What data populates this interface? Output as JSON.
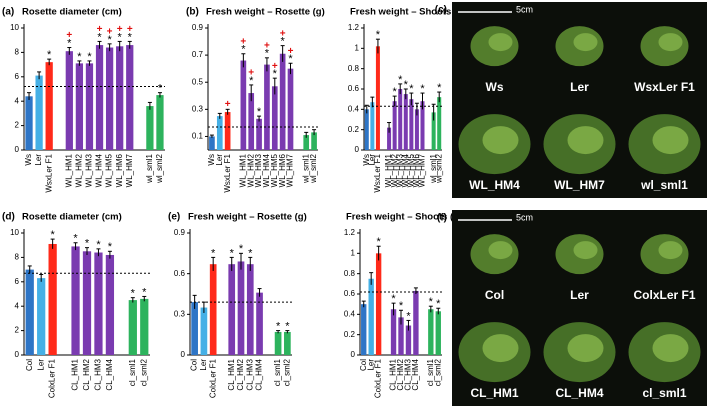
{
  "chart_data": [
    {
      "type": "bar",
      "panel": "(a)",
      "title": "Rosette diameter (cm)",
      "categories": [
        "Ws",
        "Ler",
        "WsxLer F1",
        null,
        "WL_HM1",
        "WL_HM2",
        "WL_HM3",
        "WL_HM4",
        "WL_HM5",
        "WL_HM6",
        "WL_HM7",
        null,
        "wl_sml1",
        "wl_sml2"
      ],
      "values": [
        4.4,
        6.1,
        7.2,
        null,
        8.1,
        7.1,
        7.1,
        8.6,
        8.4,
        8.5,
        8.6,
        null,
        3.6,
        4.5
      ],
      "errors": [
        0.3,
        0.3,
        0.25,
        null,
        0.3,
        0.2,
        0.2,
        0.3,
        0.3,
        0.4,
        0.3,
        null,
        0.3,
        0.2
      ],
      "colors": [
        "#2e75c6",
        "#45b0e6",
        "#ff2a1a",
        null,
        "#7a3bb0",
        "#7a3bb0",
        "#7a3bb0",
        "#7a3bb0",
        "#7a3bb0",
        "#7a3bb0",
        "#7a3bb0",
        null,
        "#2db35d",
        "#2db35d"
      ],
      "sig": [
        null,
        null,
        "*",
        null,
        "*",
        "*",
        "*",
        "*",
        "*",
        "*",
        "*",
        null,
        null,
        "*"
      ],
      "plus": [
        null,
        null,
        null,
        null,
        "+",
        null,
        null,
        "+",
        "+",
        "+",
        "+",
        null,
        null,
        null
      ],
      "reference_line": 5.2,
      "ylim": [
        0,
        10
      ],
      "yticks": [
        0,
        2,
        4,
        6,
        8,
        10
      ]
    },
    {
      "type": "bar",
      "panel": "(b)",
      "title": "Fresh weight – Rosette (g)",
      "categories": [
        "Ws",
        "Ler",
        "WsxLer F1",
        null,
        "WL_HM1",
        "WL_HM2",
        "WL_HM3",
        "WL_HM4",
        "WL_HM5",
        "WL_HM6",
        "WL_HM7",
        null,
        "wl_sml1",
        "wl_sml2"
      ],
      "values": [
        0.1,
        0.25,
        0.28,
        null,
        0.66,
        0.42,
        0.23,
        0.63,
        0.47,
        0.71,
        0.6,
        null,
        0.11,
        0.13
      ],
      "errors": [
        0.01,
        0.02,
        0.02,
        null,
        0.05,
        0.06,
        0.02,
        0.05,
        0.06,
        0.06,
        0.04,
        null,
        0.02,
        0.02
      ],
      "colors": [
        "#2e75c6",
        "#45b0e6",
        "#ff2a1a",
        null,
        "#7a3bb0",
        "#7a3bb0",
        "#7a3bb0",
        "#7a3bb0",
        "#7a3bb0",
        "#7a3bb0",
        "#7a3bb0",
        null,
        "#2db35d",
        "#2db35d"
      ],
      "sig": [
        null,
        null,
        null,
        null,
        "*",
        "*",
        "*",
        "*",
        "*",
        "*",
        "*",
        null,
        null,
        null
      ],
      "plus": [
        null,
        null,
        "+",
        null,
        "+",
        "+",
        null,
        "+",
        "+",
        "+",
        "+",
        null,
        null,
        null
      ],
      "reference_line": 0.17,
      "ylim": [
        0,
        0.9
      ],
      "yticks": [
        0.1,
        0.3,
        0.5,
        0.7,
        0.9
      ]
    },
    {
      "type": "bar",
      "title": "Fresh weight – Shoots (g)",
      "categories": [
        "Ws",
        "Ler",
        "WsxLer F1",
        null,
        "WL_HM1",
        "WL_HM2",
        "WL_HM3",
        "WL_HM4",
        "WL_HM5",
        "WL_HM6",
        "WL_HM7",
        null,
        "wl_sml1",
        "wl_sml2"
      ],
      "values": [
        0.4,
        0.47,
        1.02,
        null,
        0.22,
        0.48,
        0.6,
        0.55,
        0.5,
        0.4,
        0.48,
        null,
        0.37,
        0.52
      ],
      "errors": [
        0.04,
        0.05,
        0.07,
        null,
        0.05,
        0.05,
        0.05,
        0.05,
        0.06,
        0.06,
        0.08,
        null,
        0.08,
        0.05
      ],
      "colors": [
        "#2e75c6",
        "#45b0e6",
        "#ff2a1a",
        null,
        "#7a3bb0",
        "#7a3bb0",
        "#7a3bb0",
        "#7a3bb0",
        "#7a3bb0",
        "#7a3bb0",
        "#7a3bb0",
        null,
        "#2db35d",
        "#2db35d"
      ],
      "sig": [
        null,
        null,
        "*",
        null,
        null,
        "*",
        "*",
        "*",
        "*",
        null,
        "*",
        null,
        null,
        "*"
      ],
      "reference_line": 0.43,
      "ylim": [
        0,
        1.2
      ],
      "yticks": [
        0,
        0.2,
        0.4,
        0.6,
        0.8,
        1,
        1.2
      ]
    },
    {
      "type": "bar",
      "panel": "(d)",
      "title": "Rosette diameter (cm)",
      "categories": [
        "Col",
        "Ler",
        "ColxLer F1",
        null,
        "CL_HM1",
        "CL_HM2",
        "CL_HM3",
        "CL_HM4",
        null,
        "cl_sml1",
        "cl_sml2"
      ],
      "values": [
        7.0,
        6.3,
        9.1,
        null,
        8.9,
        8.5,
        8.4,
        8.2,
        null,
        4.5,
        4.6
      ],
      "errors": [
        0.3,
        0.3,
        0.4,
        null,
        0.3,
        0.3,
        0.3,
        0.3,
        null,
        0.2,
        0.2
      ],
      "colors": [
        "#2e75c6",
        "#45b0e6",
        "#ff2a1a",
        null,
        "#7a3bb0",
        "#7a3bb0",
        "#7a3bb0",
        "#7a3bb0",
        null,
        "#2db35d",
        "#2db35d"
      ],
      "sig": [
        null,
        null,
        "*",
        null,
        "*",
        "*",
        "*",
        "*",
        null,
        "*",
        "*"
      ],
      "reference_line": 6.7,
      "ylim": [
        0,
        10
      ],
      "yticks": [
        0,
        2,
        4,
        6,
        8,
        10
      ]
    },
    {
      "type": "bar",
      "panel": "(e)",
      "title": "Fresh weight – Rosette (g)",
      "categories": [
        "Col",
        "Ler",
        "ColxLer F1",
        null,
        "CL_HM1",
        "CL_HM2",
        "CL_HM3",
        "CL_HM4",
        null,
        "cl_sml1",
        "cl_sml2"
      ],
      "values": [
        0.39,
        0.35,
        0.67,
        null,
        0.67,
        0.69,
        0.67,
        0.46,
        null,
        0.17,
        0.17
      ],
      "errors": [
        0.05,
        0.04,
        0.05,
        null,
        0.05,
        0.06,
        0.05,
        0.03,
        null,
        0.01,
        0.01
      ],
      "colors": [
        "#2e75c6",
        "#45b0e6",
        "#ff2a1a",
        null,
        "#7a3bb0",
        "#7a3bb0",
        "#7a3bb0",
        "#7a3bb0",
        null,
        "#2db35d",
        "#2db35d"
      ],
      "sig": [
        null,
        null,
        "*",
        null,
        "*",
        "*",
        "*",
        null,
        null,
        "*",
        "*"
      ],
      "reference_line": 0.39,
      "ylim": [
        0,
        0.9
      ],
      "yticks": [
        0,
        0.3,
        0.6,
        0.9
      ]
    },
    {
      "type": "bar",
      "title": "Fresh weight – Shoots (g)",
      "categories": [
        "Col",
        "Ler",
        "ColxLer F1",
        null,
        "CL_HM1",
        "CL_HM2",
        "CL_HM3",
        "CL_HM4",
        null,
        "cl_sml1",
        "cl_sml2"
      ],
      "values": [
        0.5,
        0.75,
        1.0,
        null,
        0.45,
        0.37,
        0.29,
        0.63,
        null,
        0.45,
        0.43
      ],
      "errors": [
        0.03,
        0.06,
        0.07,
        null,
        0.06,
        0.07,
        0.05,
        0.03,
        null,
        0.03,
        0.03
      ],
      "colors": [
        "#2e75c6",
        "#45b0e6",
        "#ff2a1a",
        null,
        "#7a3bb0",
        "#7a3bb0",
        "#7a3bb0",
        "#7a3bb0",
        null,
        "#2db35d",
        "#2db35d"
      ],
      "sig": [
        null,
        null,
        "*",
        null,
        "*",
        "*",
        "*",
        null,
        null,
        "*",
        "*"
      ],
      "reference_line": 0.62,
      "ylim": [
        0,
        1.2
      ],
      "yticks": [
        0,
        0.2,
        0.4,
        0.6,
        0.8,
        1,
        1.2
      ]
    }
  ],
  "photos": [
    {
      "panel": "(c)",
      "scale": "5cm",
      "labels": [
        "Ws",
        "Ler",
        "WsxLer F1",
        "WL_HM4",
        "WL_HM7",
        "wl_sml1"
      ]
    },
    {
      "panel": "(f)",
      "scale": "5cm",
      "labels": [
        "Col",
        "Ler",
        "ColxLer F1",
        "CL_HM1",
        "CL_HM4",
        "cl_sml1"
      ]
    }
  ]
}
